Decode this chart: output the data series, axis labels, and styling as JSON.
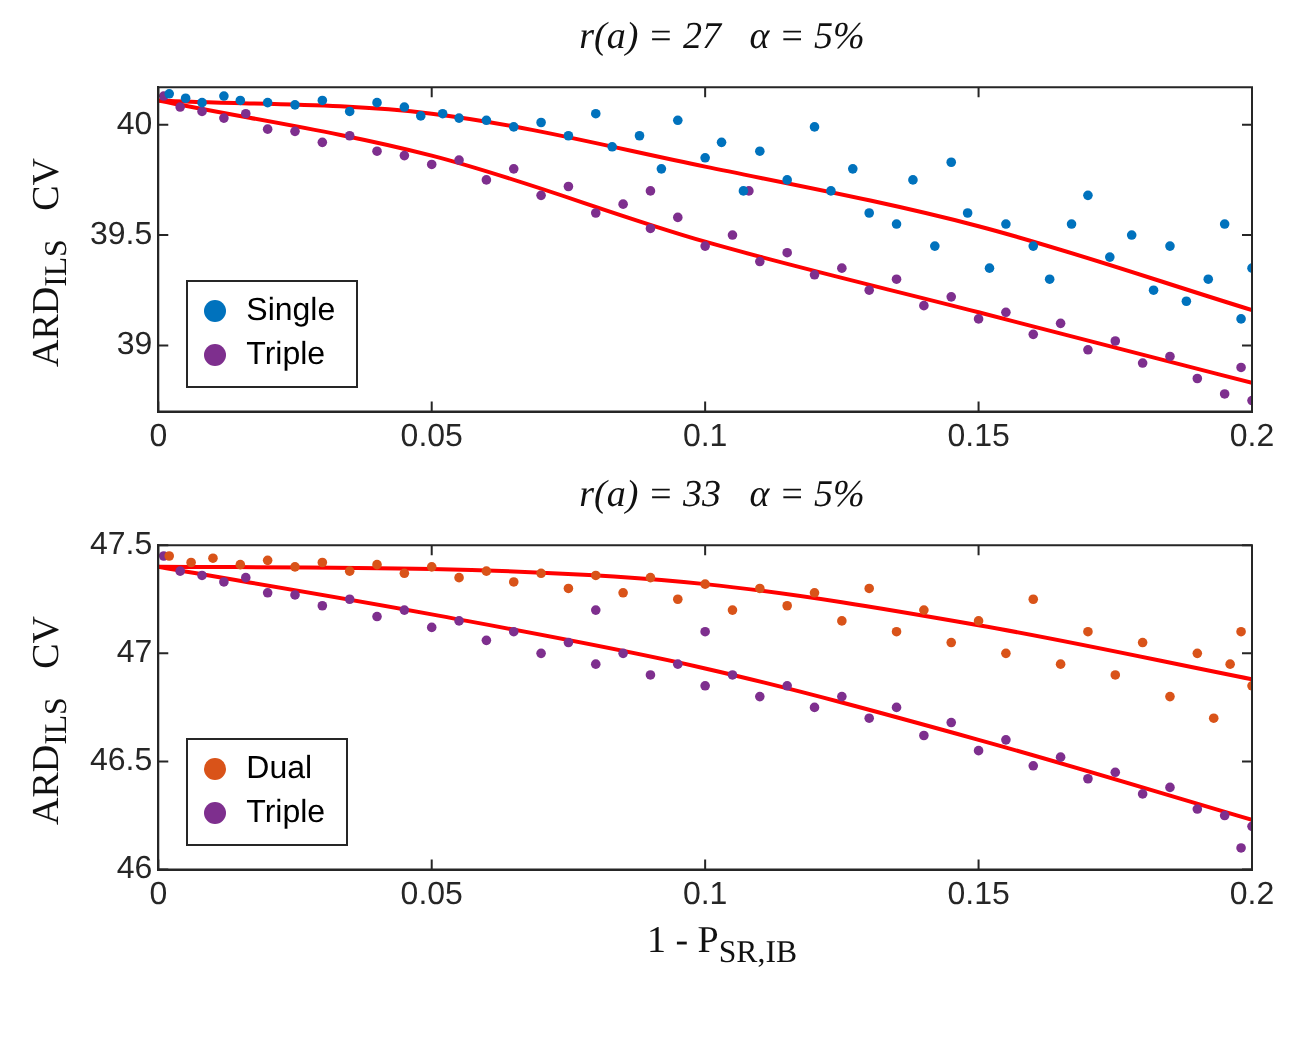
{
  "chart_data": [
    {
      "type": "scatter",
      "title": "r(a) = 27   α = 5%",
      "ylabel": "ARD$_{ILS}$   CV",
      "xlim": [
        0,
        0.2
      ],
      "xticks": [
        0,
        0.05,
        0.1,
        0.15,
        0.2
      ],
      "ylim": [
        38.7,
        40.17
      ],
      "yticks": [
        39,
        39.5,
        40
      ],
      "legend": "bottom left",
      "series": [
        {
          "name": "Single",
          "color": "#0072bd",
          "marker": "circle",
          "x": [
            0.002,
            0.005,
            0.008,
            0.012,
            0.015,
            0.02,
            0.025,
            0.03,
            0.035,
            0.04,
            0.045,
            0.048,
            0.052,
            0.055,
            0.06,
            0.065,
            0.07,
            0.075,
            0.08,
            0.083,
            0.088,
            0.092,
            0.095,
            0.1,
            0.103,
            0.107,
            0.11,
            0.115,
            0.12,
            0.123,
            0.127,
            0.13,
            0.135,
            0.138,
            0.142,
            0.145,
            0.148,
            0.152,
            0.155,
            0.16,
            0.163,
            0.167,
            0.17,
            0.174,
            0.178,
            0.182,
            0.185,
            0.188,
            0.192,
            0.195,
            0.198,
            0.2
          ],
          "values": [
            40.14,
            40.12,
            40.1,
            40.13,
            40.11,
            40.1,
            40.09,
            40.11,
            40.06,
            40.1,
            40.08,
            40.04,
            40.05,
            40.03,
            40.02,
            39.99,
            40.01,
            39.95,
            40.05,
            39.9,
            39.95,
            39.8,
            40.02,
            39.85,
            39.92,
            39.7,
            39.88,
            39.75,
            39.99,
            39.7,
            39.8,
            39.6,
            39.55,
            39.75,
            39.45,
            39.83,
            39.6,
            39.35,
            39.55,
            39.45,
            39.3,
            39.55,
            39.68,
            39.4,
            39.5,
            39.25,
            39.45,
            39.2,
            39.3,
            39.55,
            39.12,
            39.35
          ]
        },
        {
          "name": "Triple",
          "color": "#7e2f8e",
          "marker": "circle",
          "x": [
            0.001,
            0.004,
            0.008,
            0.012,
            0.016,
            0.02,
            0.025,
            0.03,
            0.035,
            0.04,
            0.045,
            0.05,
            0.055,
            0.06,
            0.065,
            0.07,
            0.075,
            0.08,
            0.085,
            0.09,
            0.095,
            0.1,
            0.105,
            0.11,
            0.115,
            0.12,
            0.125,
            0.13,
            0.135,
            0.14,
            0.145,
            0.15,
            0.155,
            0.16,
            0.165,
            0.17,
            0.175,
            0.18,
            0.185,
            0.19,
            0.195,
            0.2,
            0.198,
            0.108,
            0.09
          ],
          "values": [
            40.13,
            40.08,
            40.06,
            40.03,
            40.05,
            39.98,
            39.97,
            39.92,
            39.95,
            39.88,
            39.86,
            39.82,
            39.84,
            39.75,
            39.8,
            39.68,
            39.72,
            39.6,
            39.64,
            39.53,
            39.58,
            39.45,
            39.5,
            39.38,
            39.42,
            39.32,
            39.35,
            39.25,
            39.3,
            39.18,
            39.22,
            39.12,
            39.15,
            39.05,
            39.1,
            38.98,
            39.02,
            38.92,
            38.95,
            38.85,
            38.78,
            38.75,
            38.9,
            39.7,
            39.7
          ]
        },
        {
          "type": "line",
          "color": "#ff0000",
          "marker": "none",
          "x": [
            0,
            0.05,
            0.1,
            0.15,
            0.2
          ],
          "values": [
            40.11,
            40.05,
            39.81,
            39.54,
            39.16
          ]
        },
        {
          "type": "line",
          "color": "#ff0000",
          "marker": "none",
          "x": [
            0,
            0.05,
            0.1,
            0.15,
            0.2
          ],
          "values": [
            40.11,
            39.86,
            39.47,
            39.15,
            38.83
          ]
        }
      ]
    },
    {
      "type": "scatter",
      "title": "r(a) = 33   α = 5%",
      "ylabel": "ARD$_{ILS}$   CV",
      "xlabel": "1 - P$_{SR,IB}$",
      "xlim": [
        0,
        0.2
      ],
      "xticks": [
        0,
        0.05,
        0.1,
        0.15,
        0.2
      ],
      "ylim": [
        46,
        47.5
      ],
      "yticks": [
        46,
        46.5,
        47,
        47.5
      ],
      "legend": "bottom left",
      "series": [
        {
          "name": "Dual",
          "color": "#d95319",
          "marker": "circle",
          "x": [
            0.002,
            0.006,
            0.01,
            0.015,
            0.02,
            0.025,
            0.03,
            0.035,
            0.04,
            0.045,
            0.05,
            0.055,
            0.06,
            0.065,
            0.07,
            0.075,
            0.08,
            0.085,
            0.09,
            0.095,
            0.1,
            0.105,
            0.11,
            0.115,
            0.12,
            0.125,
            0.13,
            0.135,
            0.14,
            0.145,
            0.15,
            0.155,
            0.16,
            0.165,
            0.17,
            0.175,
            0.18,
            0.185,
            0.19,
            0.193,
            0.196,
            0.2,
            0.198
          ],
          "values": [
            47.45,
            47.42,
            47.44,
            47.41,
            47.43,
            47.4,
            47.42,
            47.38,
            47.41,
            47.37,
            47.4,
            47.35,
            47.38,
            47.33,
            47.37,
            47.3,
            47.36,
            47.28,
            47.35,
            47.25,
            47.32,
            47.2,
            47.3,
            47.22,
            47.28,
            47.15,
            47.3,
            47.1,
            47.2,
            47.05,
            47.15,
            47.0,
            47.25,
            46.95,
            47.1,
            46.9,
            47.05,
            46.8,
            47.0,
            46.7,
            46.95,
            46.85,
            47.1
          ]
        },
        {
          "name": "Triple",
          "color": "#7e2f8e",
          "marker": "circle",
          "x": [
            0.001,
            0.004,
            0.008,
            0.012,
            0.016,
            0.02,
            0.025,
            0.03,
            0.035,
            0.04,
            0.045,
            0.05,
            0.055,
            0.06,
            0.065,
            0.07,
            0.075,
            0.08,
            0.085,
            0.09,
            0.095,
            0.1,
            0.105,
            0.11,
            0.115,
            0.12,
            0.125,
            0.13,
            0.135,
            0.14,
            0.145,
            0.15,
            0.155,
            0.16,
            0.165,
            0.17,
            0.175,
            0.18,
            0.185,
            0.19,
            0.195,
            0.2,
            0.198,
            0.1,
            0.08
          ],
          "values": [
            47.45,
            47.38,
            47.36,
            47.33,
            47.35,
            47.28,
            47.27,
            47.22,
            47.25,
            47.17,
            47.2,
            47.12,
            47.15,
            47.06,
            47.1,
            47.0,
            47.05,
            46.95,
            47.0,
            46.9,
            46.95,
            46.85,
            46.9,
            46.8,
            46.85,
            46.75,
            46.8,
            46.7,
            46.75,
            46.62,
            46.68,
            46.55,
            46.6,
            46.48,
            46.52,
            46.42,
            46.45,
            46.35,
            46.38,
            46.28,
            46.25,
            46.2,
            46.1,
            47.1,
            47.2
          ]
        },
        {
          "type": "line",
          "color": "#ff0000",
          "marker": "none",
          "x": [
            0,
            0.05,
            0.1,
            0.15,
            0.2
          ],
          "values": [
            47.4,
            47.39,
            47.32,
            47.13,
            46.88
          ]
        },
        {
          "type": "line",
          "color": "#ff0000",
          "marker": "none",
          "x": [
            0,
            0.05,
            0.1,
            0.15,
            0.2
          ],
          "values": [
            47.4,
            47.18,
            46.93,
            46.6,
            46.23
          ]
        }
      ]
    }
  ]
}
